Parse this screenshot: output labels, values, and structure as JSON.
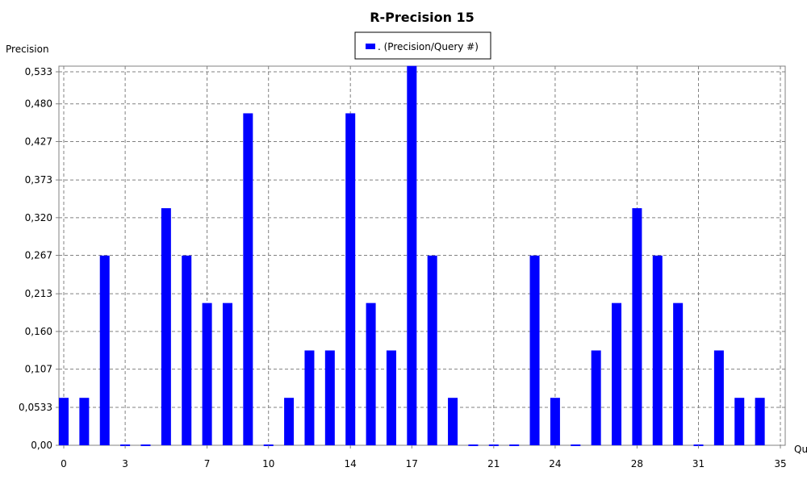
{
  "colors": {
    "bar": "#0000ff",
    "grid": "#808080",
    "background": "#ffffff",
    "axis": "#000000"
  },
  "chart_data": {
    "type": "bar",
    "title": "R-Precision 15",
    "ylabel": "Precision",
    "xlabel": "Qu",
    "legend": {
      "entries": [
        ". (Precision/Query #)"
      ],
      "placement": "top-center"
    },
    "grid": true,
    "xlim": [
      0,
      35
    ],
    "ylim": [
      0,
      0.533
    ],
    "x_ticks": [
      "0",
      "3",
      "7",
      "10",
      "14",
      "17",
      "21",
      "24",
      "28",
      "31",
      "35"
    ],
    "y_ticks": [
      "0,00",
      "0,0533",
      "0,107",
      "0,160",
      "0,213",
      "0,267",
      "0,320",
      "0,373",
      "0,427",
      "0,480",
      "0,533"
    ],
    "series": [
      {
        "name": ". (Precision/Query #)",
        "x": [
          0,
          1,
          2,
          3,
          4,
          5,
          6,
          7,
          8,
          9,
          10,
          11,
          12,
          13,
          14,
          15,
          16,
          17,
          18,
          19,
          20,
          21,
          22,
          23,
          24,
          25,
          26,
          27,
          28,
          29,
          30,
          31,
          32,
          33,
          34
        ],
        "values": [
          0.0667,
          0.0667,
          0.2667,
          0.0,
          0.0,
          0.3333,
          0.2667,
          0.2,
          0.2,
          0.4667,
          0.0,
          0.0667,
          0.1333,
          0.1333,
          0.4667,
          0.2,
          0.1333,
          0.5333,
          0.2667,
          0.0667,
          0.0,
          0.0,
          0.0,
          0.2667,
          0.0667,
          0.0,
          0.1333,
          0.2,
          0.3333,
          0.2667,
          0.2,
          0.0,
          0.1333,
          0.0667,
          0.0667
        ]
      }
    ]
  }
}
